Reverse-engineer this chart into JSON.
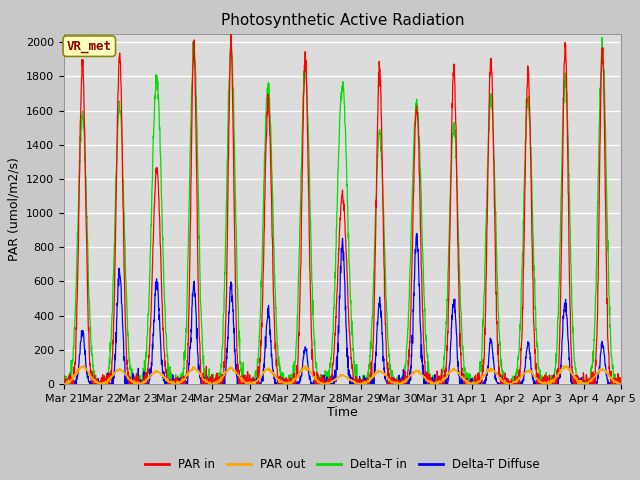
{
  "title": "Photosynthetic Active Radiation",
  "ylabel": "PAR (umol/m2/s)",
  "xlabel": "Time",
  "annotation": "VR_met",
  "ylim": [
    0,
    2050
  ],
  "background_color": "#dcdcdc",
  "fig_bg_color": "#c8c8c8",
  "line_colors": {
    "PAR_in": "#ff0000",
    "PAR_out": "#ffa500",
    "Delta_T_in": "#00dd00",
    "Delta_T_Diffuse": "#0000ff"
  },
  "legend_labels": [
    "PAR in",
    "PAR out",
    "Delta-T in",
    "Delta-T Diffuse"
  ],
  "tick_dates": [
    "Mar 21",
    "Mar 22",
    "Mar 23",
    "Mar 24",
    "Mar 25",
    "Mar 26",
    "Mar 27",
    "Mar 28",
    "Mar 29",
    "Mar 30",
    "Mar 31",
    "Apr 1",
    "Apr 2",
    "Apr 3",
    "Apr 4",
    "Apr 5"
  ],
  "days": 15,
  "pts_per_day": 144,
  "day_peaks_PAR_in": [
    1870,
    1920,
    1260,
    1980,
    1980,
    1660,
    1910,
    1100,
    1840,
    1630,
    1840,
    1910,
    1840,
    1970,
    1960
  ],
  "day_peaks_PAR_out": [
    100,
    85,
    75,
    90,
    90,
    85,
    95,
    50,
    75,
    75,
    85,
    85,
    75,
    100,
    85
  ],
  "day_peaks_DeltaT_in": [
    1580,
    1620,
    1800,
    1980,
    1980,
    1750,
    1860,
    1750,
    1480,
    1650,
    1500,
    1660,
    1650,
    1800,
    1970
  ],
  "day_peaks_DeltaT_diff": [
    310,
    680,
    610,
    570,
    580,
    420,
    210,
    820,
    490,
    860,
    480,
    250,
    240,
    490,
    240
  ],
  "day_widths_PAR_in": [
    0.25,
    0.25,
    0.3,
    0.22,
    0.22,
    0.28,
    0.25,
    0.35,
    0.25,
    0.28,
    0.25,
    0.25,
    0.25,
    0.22,
    0.22
  ],
  "day_widths_DeltaT_in": [
    0.35,
    0.35,
    0.38,
    0.32,
    0.32,
    0.36,
    0.35,
    0.4,
    0.35,
    0.38,
    0.35,
    0.35,
    0.35,
    0.32,
    0.32
  ],
  "day_widths_DeltaT_diff": [
    0.2,
    0.2,
    0.22,
    0.2,
    0.2,
    0.2,
    0.18,
    0.22,
    0.2,
    0.22,
    0.2,
    0.18,
    0.18,
    0.2,
    0.18
  ]
}
